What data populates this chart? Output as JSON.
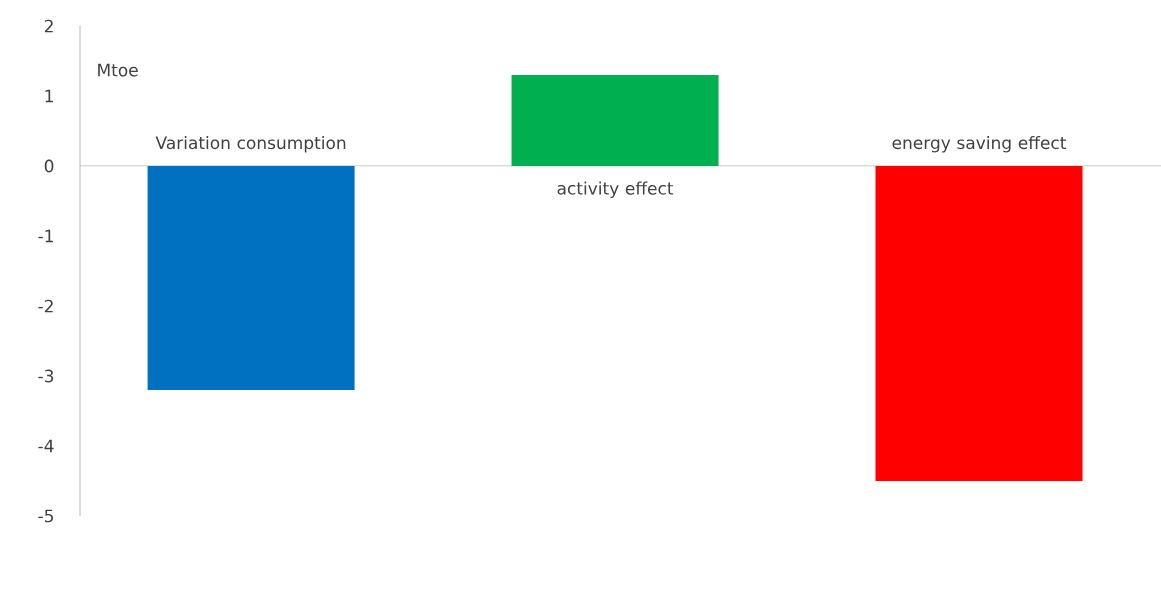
{
  "chart_data": {
    "type": "bar",
    "ylabel": "Mtoe",
    "categories": [
      "Variation consumption",
      "activity effect",
      "energy saving effect"
    ],
    "values": [
      -3.2,
      1.3,
      -4.5
    ],
    "colors": [
      "#0070c0",
      "#00b050",
      "#ff0000"
    ],
    "ylim": [
      -5,
      2
    ],
    "yticks": [
      -5,
      -4,
      -3,
      -2,
      -1,
      0,
      1,
      2
    ]
  }
}
